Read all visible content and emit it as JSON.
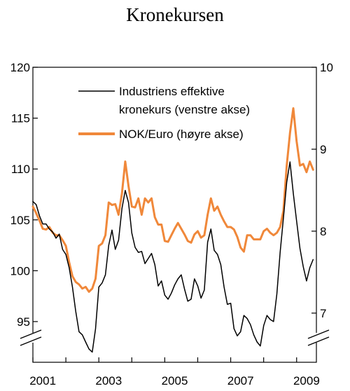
{
  "chart_data": {
    "type": "line",
    "title": "Kronekursen",
    "left_axis": {
      "range": [
        91,
        120
      ],
      "ticks": [
        95,
        100,
        105,
        110,
        115,
        120
      ]
    },
    "right_axis": {
      "range": [
        6.4,
        10
      ],
      "ticks": [
        7,
        8,
        9,
        10
      ]
    },
    "x_axis": {
      "range": [
        2001,
        2009.6
      ],
      "tick_labels": [
        "2001",
        "2003",
        "2005",
        "2007",
        "2009"
      ]
    },
    "grid": false,
    "legend_placement": "top-center",
    "series": [
      {
        "name": "Industriens effektive kronekurs (venstre akse)",
        "axis": "left",
        "color": "#000000",
        "x": [
          2001.0,
          2001.1,
          2001.2,
          2001.3,
          2001.4,
          2001.5,
          2001.6,
          2001.7,
          2001.8,
          2001.9,
          2002.0,
          2002.1,
          2002.2,
          2002.3,
          2002.4,
          2002.5,
          2002.6,
          2002.7,
          2002.8,
          2002.9,
          2003.0,
          2003.1,
          2003.2,
          2003.3,
          2003.4,
          2003.5,
          2003.6,
          2003.7,
          2003.8,
          2003.9,
          2004.0,
          2004.1,
          2004.2,
          2004.3,
          2004.4,
          2004.5,
          2004.6,
          2004.7,
          2004.8,
          2004.9,
          2005.0,
          2005.1,
          2005.2,
          2005.3,
          2005.4,
          2005.5,
          2005.6,
          2005.7,
          2005.8,
          2005.9,
          2006.0,
          2006.1,
          2006.2,
          2006.3,
          2006.4,
          2006.5,
          2006.6,
          2006.7,
          2006.8,
          2006.9,
          2007.0,
          2007.1,
          2007.2,
          2007.3,
          2007.4,
          2007.5,
          2007.6,
          2007.7,
          2007.8,
          2007.9,
          2008.0,
          2008.1,
          2008.2,
          2008.3,
          2008.4,
          2008.5,
          2008.6,
          2008.7,
          2008.8,
          2008.9,
          2009.0,
          2009.1,
          2009.2,
          2009.3,
          2009.4,
          2009.5
        ],
        "values": [
          106.8,
          106.5,
          105.4,
          104.6,
          104.6,
          104.1,
          103.8,
          103.2,
          103.6,
          102.1,
          101.6,
          100.3,
          98.4,
          96.0,
          94.0,
          93.7,
          93.0,
          92.3,
          92.0,
          94.3,
          98.4,
          98.8,
          99.6,
          102.5,
          104.0,
          102.1,
          103.0,
          106.1,
          107.9,
          106.7,
          103.7,
          102.3,
          101.8,
          101.9,
          100.7,
          101.2,
          101.7,
          100.6,
          98.5,
          99.0,
          97.6,
          97.2,
          97.8,
          98.6,
          99.2,
          99.6,
          98.2,
          97.0,
          97.2,
          99.2,
          98.5,
          97.3,
          98.1,
          102.8,
          104.1,
          102.0,
          101.6,
          100.6,
          98.4,
          96.7,
          96.8,
          94.3,
          93.6,
          94.0,
          95.6,
          95.3,
          94.7,
          93.7,
          93.0,
          92.6,
          94.6,
          95.6,
          95.2,
          95.0,
          97.7,
          101.8,
          105.2,
          108.7,
          110.7,
          107.6,
          104.9,
          102.2,
          100.4,
          99.0,
          100.3,
          101.1
        ]
      },
      {
        "name": "NOK/Euro (høyre akse)",
        "axis": "right",
        "color": "#f0883a",
        "x": [
          2001.0,
          2001.1,
          2001.2,
          2001.3,
          2001.4,
          2001.5,
          2001.6,
          2001.7,
          2001.8,
          2001.9,
          2002.0,
          2002.1,
          2002.2,
          2002.3,
          2002.4,
          2002.5,
          2002.6,
          2002.7,
          2002.8,
          2002.9,
          2003.0,
          2003.1,
          2003.2,
          2003.3,
          2003.4,
          2003.5,
          2003.6,
          2003.7,
          2003.8,
          2003.9,
          2004.0,
          2004.1,
          2004.2,
          2004.3,
          2004.4,
          2004.5,
          2004.6,
          2004.7,
          2004.8,
          2004.9,
          2005.0,
          2005.1,
          2005.2,
          2005.3,
          2005.4,
          2005.5,
          2005.6,
          2005.7,
          2005.8,
          2005.9,
          2006.0,
          2006.1,
          2006.2,
          2006.3,
          2006.4,
          2006.5,
          2006.6,
          2006.7,
          2006.8,
          2006.9,
          2007.0,
          2007.1,
          2007.2,
          2007.3,
          2007.4,
          2007.5,
          2007.6,
          2007.7,
          2007.8,
          2007.9,
          2008.0,
          2008.1,
          2008.2,
          2008.3,
          2008.4,
          2008.5,
          2008.6,
          2008.7,
          2008.8,
          2008.9,
          2009.0,
          2009.1,
          2009.2,
          2009.3,
          2009.4,
          2009.5
        ],
        "values": [
          8.3,
          8.22,
          8.13,
          8.03,
          8.02,
          8.05,
          7.98,
          7.95,
          7.95,
          7.89,
          7.82,
          7.62,
          7.45,
          7.38,
          7.35,
          7.3,
          7.32,
          7.26,
          7.3,
          7.42,
          7.82,
          7.85,
          7.95,
          8.35,
          8.32,
          8.33,
          8.2,
          8.46,
          8.85,
          8.55,
          8.3,
          8.29,
          8.4,
          8.2,
          8.4,
          8.35,
          8.4,
          8.17,
          8.08,
          8.08,
          7.88,
          7.87,
          7.95,
          8.03,
          8.1,
          8.03,
          7.96,
          7.88,
          7.86,
          7.96,
          8.0,
          7.92,
          7.95,
          8.2,
          8.4,
          8.25,
          8.3,
          8.2,
          8.12,
          8.05,
          8.05,
          8.02,
          7.93,
          7.8,
          7.75,
          7.95,
          7.95,
          7.9,
          7.9,
          7.9,
          8.0,
          8.03,
          7.98,
          7.95,
          7.98,
          8.05,
          8.25,
          8.8,
          9.2,
          9.5,
          9.1,
          8.8,
          8.82,
          8.72,
          8.85,
          8.75
        ]
      }
    ]
  }
}
